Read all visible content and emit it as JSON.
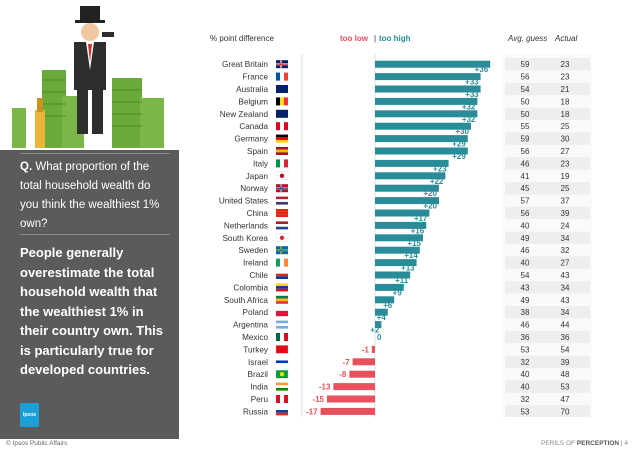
{
  "header": {
    "pct_label": "% point difference",
    "too_low": "too low",
    "sep": "|",
    "too_high": "too high",
    "avg_guess": "Avg. guess",
    "actual": "Actual"
  },
  "question": {
    "prefix": "Q.",
    "text": "What proportion of the total household wealth do you think the wealthiest 1% own?"
  },
  "takeaway": "People generally overestimate the total household wealth that the wealthiest 1% in their country own. This is particularly true for developed countries.",
  "logo_text": "Ipsos",
  "footer": {
    "left": "© Ipsos Public Affairs",
    "right_prefix": "PERILS OF",
    "right_bold": "PERCEPTION",
    "page": "4"
  },
  "colors": {
    "positive": "#2a8c99",
    "negative": "#e8505b",
    "row_alt": "#eeeeee"
  },
  "chart_data": {
    "type": "bar",
    "orientation": "horizontal",
    "categories": [
      "Great Britain",
      "France",
      "Australia",
      "Belgium",
      "New Zealand",
      "Canada",
      "Germany",
      "Spain",
      "Italy",
      "Japan",
      "Norway",
      "United States",
      "China",
      "Netherlands",
      "South Korea",
      "Sweden",
      "Ireland",
      "Chile",
      "Colombia",
      "South Africa",
      "Poland",
      "Argentina",
      "Mexico",
      "Turkey",
      "Israel",
      "Brazil",
      "India",
      "Peru",
      "Russia"
    ],
    "values": [
      36,
      33,
      33,
      32,
      32,
      30,
      29,
      29,
      23,
      22,
      20,
      20,
      17,
      16,
      15,
      14,
      13,
      11,
      9,
      6,
      4,
      2,
      0,
      -1,
      -7,
      -8,
      -13,
      -15,
      -17
    ],
    "value_labels": [
      "+36",
      "+33",
      "+33",
      "+32",
      "+32",
      "+30",
      "+29",
      "+29",
      "+23",
      "+22",
      "+20",
      "+20",
      "+17",
      "+16",
      "+15",
      "+14",
      "+13",
      "+11",
      "+9",
      "+6",
      "+4",
      "+2",
      "0",
      "-1",
      "-7",
      "-8",
      "-13",
      "-15",
      "-17"
    ],
    "avg_guess": [
      59,
      56,
      54,
      50,
      50,
      55,
      59,
      56,
      46,
      41,
      45,
      57,
      56,
      40,
      49,
      46,
      40,
      54,
      43,
      49,
      38,
      46,
      36,
      53,
      32,
      40,
      40,
      32,
      53
    ],
    "actual": [
      23,
      23,
      21,
      18,
      18,
      25,
      30,
      27,
      23,
      19,
      25,
      37,
      39,
      24,
      34,
      32,
      27,
      43,
      34,
      43,
      34,
      44,
      36,
      54,
      39,
      48,
      53,
      47,
      70
    ],
    "flags": [
      {
        "stripes": [
          "#012169",
          "#ffffff",
          "#C8102E"
        ],
        "dir": "cross"
      },
      {
        "stripes": [
          "#0055A4",
          "#ffffff",
          "#EF4135"
        ],
        "dir": "v"
      },
      {
        "stripes": [
          "#012169",
          "#012169",
          "#012169"
        ],
        "dir": "v"
      },
      {
        "stripes": [
          "#000000",
          "#FDDA24",
          "#EF3340"
        ],
        "dir": "v"
      },
      {
        "stripes": [
          "#012169",
          "#012169",
          "#012169"
        ],
        "dir": "v"
      },
      {
        "stripes": [
          "#D80621",
          "#ffffff",
          "#D80621"
        ],
        "dir": "v"
      },
      {
        "stripes": [
          "#000000",
          "#DD0000",
          "#FFCE00"
        ],
        "dir": "h"
      },
      {
        "stripes": [
          "#AA151B",
          "#F1BF00",
          "#AA151B"
        ],
        "dir": "h"
      },
      {
        "stripes": [
          "#009246",
          "#ffffff",
          "#CE2B37"
        ],
        "dir": "v"
      },
      {
        "stripes": [
          "#ffffff",
          "#BC002D",
          "#ffffff"
        ],
        "dir": "dot"
      },
      {
        "stripes": [
          "#BA0C2F",
          "#ffffff",
          "#00205B"
        ],
        "dir": "cross"
      },
      {
        "stripes": [
          "#B22234",
          "#ffffff",
          "#3C3B6E"
        ],
        "dir": "h"
      },
      {
        "stripes": [
          "#DE2910",
          "#DE2910",
          "#DE2910"
        ],
        "dir": "h"
      },
      {
        "stripes": [
          "#AE1C28",
          "#ffffff",
          "#21468B"
        ],
        "dir": "h"
      },
      {
        "stripes": [
          "#ffffff",
          "#CD2E3A",
          "#ffffff"
        ],
        "dir": "dot"
      },
      {
        "stripes": [
          "#006AA7",
          "#FECC00",
          "#006AA7"
        ],
        "dir": "cross"
      },
      {
        "stripes": [
          "#169B62",
          "#ffffff",
          "#FF883E"
        ],
        "dir": "v"
      },
      {
        "stripes": [
          "#ffffff",
          "#D52B1E",
          "#0039A6"
        ],
        "dir": "h"
      },
      {
        "stripes": [
          "#FCD116",
          "#003893",
          "#CE1126"
        ],
        "dir": "h"
      },
      {
        "stripes": [
          "#007A4D",
          "#FFB612",
          "#DE3831"
        ],
        "dir": "h"
      },
      {
        "stripes": [
          "#ffffff",
          "#DC143C",
          "#DC143C"
        ],
        "dir": "h"
      },
      {
        "stripes": [
          "#74ACDF",
          "#ffffff",
          "#74ACDF"
        ],
        "dir": "h"
      },
      {
        "stripes": [
          "#006847",
          "#ffffff",
          "#CE1126"
        ],
        "dir": "v"
      },
      {
        "stripes": [
          "#E30A17",
          "#E30A17",
          "#E30A17"
        ],
        "dir": "dot"
      },
      {
        "stripes": [
          "#ffffff",
          "#0038b8",
          "#ffffff"
        ],
        "dir": "h"
      },
      {
        "stripes": [
          "#009C3B",
          "#FFDF00",
          "#009C3B"
        ],
        "dir": "dot"
      },
      {
        "stripes": [
          "#FF9933",
          "#ffffff",
          "#138808"
        ],
        "dir": "h"
      },
      {
        "stripes": [
          "#D91023",
          "#ffffff",
          "#D91023"
        ],
        "dir": "v"
      },
      {
        "stripes": [
          "#ffffff",
          "#0039A6",
          "#D52B1E"
        ],
        "dir": "h"
      }
    ],
    "xlim": [
      -20,
      38
    ]
  }
}
